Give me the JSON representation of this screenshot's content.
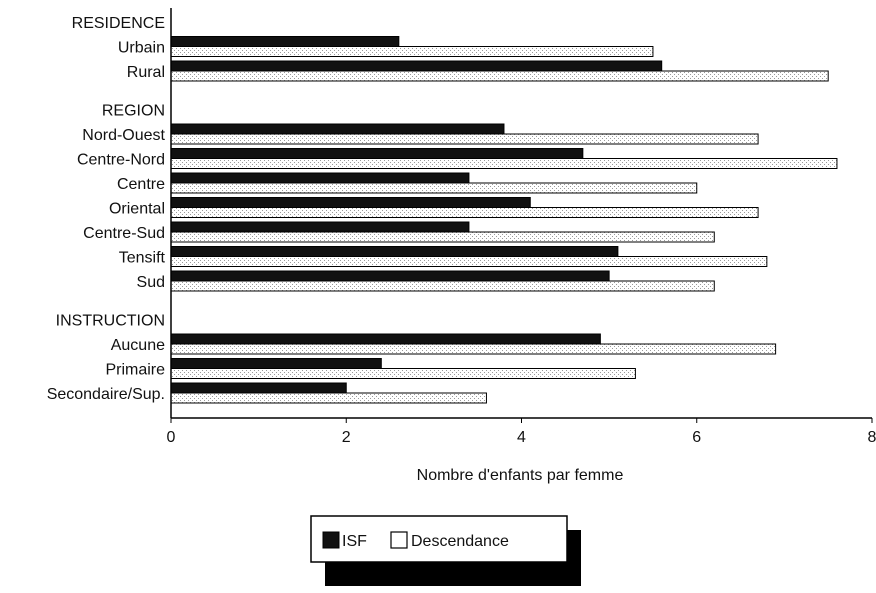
{
  "chart_data": {
    "type": "bar",
    "orientation": "horizontal",
    "xlabel": "Nombre d'enfants par femme",
    "xlim": [
      0,
      8
    ],
    "xticks": [
      "0",
      "2",
      "4",
      "6",
      "8"
    ],
    "grid": false,
    "legend_position": "bottom",
    "legend": [
      {
        "name": "ISF",
        "color": "#111111"
      },
      {
        "name": "Descendance",
        "color": "#ffffff"
      }
    ],
    "groups": [
      {
        "heading": "RESIDENCE",
        "categories": [
          {
            "label": "Urbain",
            "isf": 2.6,
            "descendance": 5.5
          },
          {
            "label": "Rural",
            "isf": 5.6,
            "descendance": 7.5
          }
        ]
      },
      {
        "heading": "REGION",
        "categories": [
          {
            "label": "Nord-Ouest",
            "isf": 3.8,
            "descendance": 6.7
          },
          {
            "label": "Centre-Nord",
            "isf": 4.7,
            "descendance": 7.6
          },
          {
            "label": "Centre",
            "isf": 3.4,
            "descendance": 6.0
          },
          {
            "label": "Oriental",
            "isf": 4.1,
            "descendance": 6.7
          },
          {
            "label": "Centre-Sud",
            "isf": 3.4,
            "descendance": 6.2
          },
          {
            "label": "Tensift",
            "isf": 5.1,
            "descendance": 6.8
          },
          {
            "label": "Sud",
            "isf": 5.0,
            "descendance": 6.2
          }
        ]
      },
      {
        "heading": "INSTRUCTION",
        "categories": [
          {
            "label": "Aucune",
            "isf": 4.9,
            "descendance": 6.9
          },
          {
            "label": "Primaire",
            "isf": 2.4,
            "descendance": 5.3
          },
          {
            "label": "Secondaire/Sup.",
            "isf": 2.0,
            "descendance": 3.6
          }
        ]
      }
    ]
  }
}
